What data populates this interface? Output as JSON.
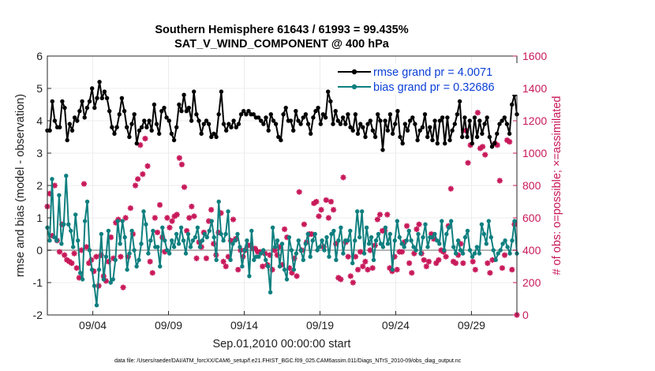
{
  "chart_data": {
    "type": "line",
    "title_line1": "Southern Hemisphere 61643 / 61993 = 99.435%",
    "title_line2": "SAT_V_WIND_COMPONENT @ 400 hPa",
    "xlabel": "Sep.01,2010 00:00:00 start",
    "ylabel": "rmse and bias (model - observation)",
    "ylabel_right": "# of obs: o=possible; ×=assimilated",
    "footer": "data file: /Users/raeder/DAI/ATM_forcXX/CAM6_setup/f.e21.FHIST_BGC.f09_025.CAM6assim.011/Diags_NTrS_2010-09/obs_diag_output.nc",
    "x_range": [
      1,
      32
    ],
    "ylim": [
      -2,
      6
    ],
    "ylim_right": [
      0,
      1600
    ],
    "x_ticks": [
      {
        "value": 4,
        "label": "09/04"
      },
      {
        "value": 9,
        "label": "09/09"
      },
      {
        "value": 14,
        "label": "09/14"
      },
      {
        "value": 19,
        "label": "09/19"
      },
      {
        "value": 24,
        "label": "09/24"
      },
      {
        "value": 29,
        "label": "09/29"
      }
    ],
    "y_ticks": [
      "-2",
      "-1",
      "0",
      "1",
      "2",
      "3",
      "4",
      "5",
      "6"
    ],
    "y_ticks_right": [
      "0",
      "200",
      "400",
      "600",
      "800",
      "1000",
      "1200",
      "1400",
      "1600"
    ],
    "zero_line": 0,
    "series": [
      {
        "name": "rmse grand pr = 4.0071",
        "color": "#000000",
        "marker": "circle",
        "values": [
          3.7,
          3.7,
          4.6,
          4.0,
          3.8,
          3.8,
          4.6,
          4.4,
          3.4,
          3.9,
          3.7,
          4.1,
          4.0,
          4.3,
          4.6,
          4.1,
          4.4,
          4.6,
          5.0,
          4.4,
          4.7,
          5.2,
          4.7,
          4.9,
          4.7,
          4.3,
          3.8,
          3.6,
          3.8,
          4.2,
          4.7,
          4.3,
          3.8,
          3.5,
          3.9,
          4.2,
          3.3,
          3.7,
          3.8,
          4.0,
          3.8,
          4.0,
          3.7,
          4.5,
          3.9,
          3.6,
          4.3,
          4.4,
          4.1,
          4.0,
          3.6,
          3.4,
          3.8,
          4.5,
          4.3,
          4.8,
          4.3,
          4.4,
          4.0,
          4.9,
          4.2,
          4.0,
          3.6,
          3.9,
          4.0,
          3.9,
          3.5,
          3.6,
          3.5,
          4.2,
          4.9,
          3.9,
          3.7,
          3.9,
          3.8,
          4.0,
          3.8,
          3.9,
          4.2,
          4.3,
          4.2,
          4.3,
          4.2,
          4.2,
          4.1,
          4.1,
          4.0,
          3.9,
          4.1,
          3.7,
          4.2,
          4.0,
          3.9,
          3.5,
          3.4,
          4.2,
          4.4,
          4.0,
          4.0,
          3.7,
          4.3,
          4.0,
          3.9,
          4.1,
          4.2,
          3.9,
          3.6,
          4.1,
          4.3,
          4.4,
          3.9,
          4.2,
          4.1,
          4.9,
          4.6,
          3.9,
          4.3,
          4.0,
          3.9,
          4.1,
          3.9,
          4.2,
          3.8,
          3.7,
          4.2,
          3.6,
          3.9,
          3.8,
          3.5,
          3.9,
          4.0,
          3.7,
          3.5,
          4.2,
          4.0,
          3.1,
          4.0,
          3.7,
          4.2,
          3.6,
          3.9,
          4.3,
          3.5,
          3.3,
          3.9,
          3.7,
          4.0,
          4.1,
          3.9,
          3.4,
          3.7,
          3.8,
          4.2,
          3.5,
          3.8,
          3.4,
          4.0,
          3.3,
          4.0,
          4.1,
          3.3,
          4.1,
          3.4,
          3.7,
          3.9,
          4.2,
          4.6,
          3.5,
          4.1,
          3.5,
          4.0,
          3.3,
          4.1,
          3.5,
          4.0,
          3.6,
          3.9,
          4.1,
          3.5,
          3.2,
          3.3,
          3.6,
          3.9,
          4.0,
          4.1,
          3.9,
          3.6,
          4.5,
          4.8,
          4.2
        ],
        "labels": []
      },
      {
        "name": "bias grand pr = 0.32686",
        "color": "#0f7f7f",
        "marker": "circle",
        "values": [
          0.7,
          0.3,
          2.2,
          0.4,
          0.3,
          1.7,
          0.2,
          0.8,
          2.3,
          0.8,
          0.6,
          0.1,
          1.1,
          0.3,
          -0.7,
          -0.9,
          0.9,
          1.5,
          0.0,
          -0.6,
          -1.1,
          -1.7,
          -0.6,
          0.5,
          -0.9,
          -0.2,
          0.6,
          -1.0,
          -0.9,
          -0.3,
          0.9,
          0.2,
          0.9,
          0.4,
          -0.6,
          -0.1,
          0.6,
          0.0,
          -0.5,
          -0.3,
          0.2,
          1.2,
          0.8,
          -0.1,
          0.3,
          0.6,
          0.1,
          0.1,
          -0.5,
          0.7,
          0.3,
          0.0,
          -0.1,
          0.3,
          0.1,
          0.5,
          0.2,
          0.7,
          0.3,
          -0.1,
          0.5,
          0.1,
          0.3,
          0.4,
          0.7,
          0.1,
          0.3,
          0.5,
          0.4,
          0.6,
          0.9,
          0.4,
          -0.3,
          1.5,
          0.5,
          0.3,
          0.5,
          1.2,
          -0.3,
          0.2,
          0.3,
          0.5,
          0.1,
          -0.5,
          0.0,
          0.3,
          -0.8,
          0.6,
          -0.3,
          -0.2,
          -0.2,
          -0.1,
          0.0,
          -0.3,
          -0.5,
          -1.3,
          0.7,
          0.1,
          0.3,
          -0.5,
          0.2,
          -0.6,
          -0.9,
          0.4,
          0.0,
          -0.6,
          -0.1,
          0.3,
          0.0,
          -0.3,
          0.2,
          0.5,
          -0.2,
          0.3,
          0.5,
          0.0,
          0.1,
          0.3,
          0.0,
          0.4,
          -0.2,
          0.5,
          0.6,
          -0.3,
          0.3,
          0.7,
          -0.1,
          0.3,
          0.3,
          0.6,
          -0.4,
          0.3,
          1.2,
          0.4,
          1.2,
          -0.1,
          0.7,
          0.2,
          0.4,
          -0.3,
          0.3,
          0.5,
          0.2,
          0.1,
          0.7,
          0.2,
          0.5,
          -0.6,
          0.3,
          0.9,
          0.4,
          0.2,
          0.1,
          0.3,
          0.6,
          0.3,
          0.1,
          0.0,
          0.5,
          -0.1,
          0.4,
          0.8,
          0.1,
          0.4,
          0.4,
          0.5,
          0.3,
          0.2,
          0.9,
          0.0,
          0.5,
          0.7,
          0.9,
          0.1,
          -0.1,
          0.3,
          0.0,
          -0.1,
          0.4,
          0.6,
          0.0,
          -0.2,
          -0.1,
          0.1,
          -0.1,
          0.8,
          0.5,
          0.2,
          0.9,
          0.4,
          0.0,
          -0.3,
          -0.1,
          0.0,
          0.2,
          0.3,
          0.1,
          -0.1,
          0.3,
          0.9,
          -0.1
        ],
        "labels": []
      }
    ],
    "obs_counts": {
      "name": "assimilated",
      "color": "#c8195a",
      "marker": "asterisk",
      "values": [
        670,
        750,
        490,
        800,
        460,
        390,
        560,
        370,
        340,
        330,
        320,
        380,
        290,
        230,
        400,
        810,
        420,
        320,
        340,
        270,
        360,
        180,
        370,
        240,
        210,
        330,
        480,
        350,
        570,
        590,
        360,
        170,
        600,
        360,
        660,
        500,
        800,
        840,
        1050,
        870,
        1090,
        920,
        330,
        260,
        600,
        510,
        680,
        480,
        390,
        600,
        540,
        580,
        610,
        620,
        970,
        930,
        790,
        520,
        600,
        670,
        610,
        350,
        450,
        420,
        510,
        350,
        580,
        650,
        440,
        370,
        510,
        630,
        330,
        300,
        360,
        460,
        590,
        470,
        280,
        400,
        360,
        400,
        430,
        430,
        410,
        410,
        390,
        390,
        300,
        380,
        310,
        370,
        280,
        400,
        370,
        420,
        310,
        530,
        480,
        290,
        260,
        350,
        240,
        760,
        400,
        560,
        450,
        500,
        500,
        690,
        700,
        610,
        650,
        420,
        710,
        600,
        700,
        650,
        440,
        230,
        220,
        850,
        450,
        360,
        240,
        200,
        360,
        280,
        390,
        300,
        330,
        280,
        400,
        290,
        430,
        590,
        620,
        520,
        520,
        620,
        290,
        270,
        360,
        280,
        390,
        390,
        450,
        550,
        320,
        260,
        380,
        530,
        560,
        380,
        340,
        300,
        330,
        500,
        470,
        320,
        340,
        400,
        390,
        360,
        550,
        780,
        330,
        320,
        370,
        440,
        320,
        1140,
        940,
        1050,
        330,
        280,
        1250,
        1030,
        1040,
        990,
        320,
        260,
        340,
        1060,
        1050,
        830,
        290,
        370,
        1080,
        1070,
        280,
        560,
        0
      ]
    }
  }
}
